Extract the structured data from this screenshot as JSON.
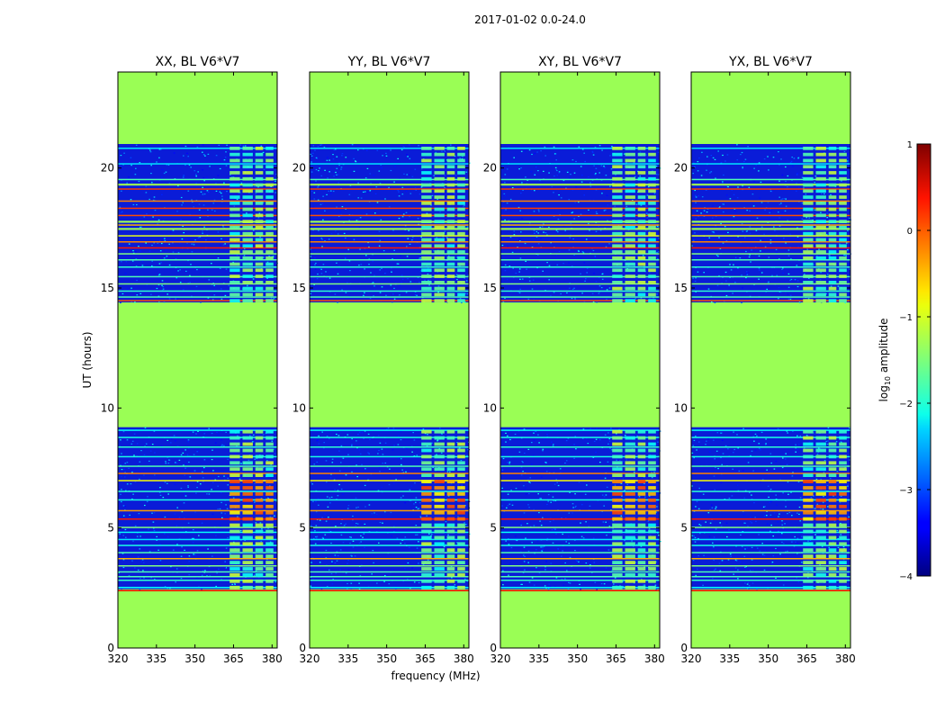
{
  "chart_data": {
    "type": "heatmap",
    "suptitle": "2017-01-02 0.0-24.0",
    "xlabel": "frequency (MHz)",
    "ylabel": "UT (hours)",
    "xlim": [
      320,
      382
    ],
    "ylim": [
      0,
      24
    ],
    "xticks": [
      320,
      335,
      350,
      365,
      380
    ],
    "yticks": [
      0,
      5,
      10,
      15,
      20
    ],
    "panels": [
      {
        "title": "XX, BL V6*V7"
      },
      {
        "title": "YY, BL V6*V7"
      },
      {
        "title": "XY, BL V6*V7"
      },
      {
        "title": "YX, BL V6*V7"
      }
    ],
    "flagged_ut_ranges": [
      [
        0,
        2.4
      ],
      [
        9.2,
        14.4
      ],
      [
        21.0,
        24.0
      ]
    ],
    "flagged_ut_lines": [
      19.35,
      17.8,
      17.5
    ],
    "rfi_freq_range_mhz": [
      363,
      380
    ],
    "colorbar": {
      "label_prefix": "log",
      "label_sub": "10",
      "label_suffix": " amplitude",
      "range": [
        -4,
        1
      ],
      "ticks": [
        "1",
        "0",
        "−1",
        "−2",
        "−3",
        "−4"
      ],
      "colormap": "jet"
    },
    "flag_color": "#9afe55"
  }
}
